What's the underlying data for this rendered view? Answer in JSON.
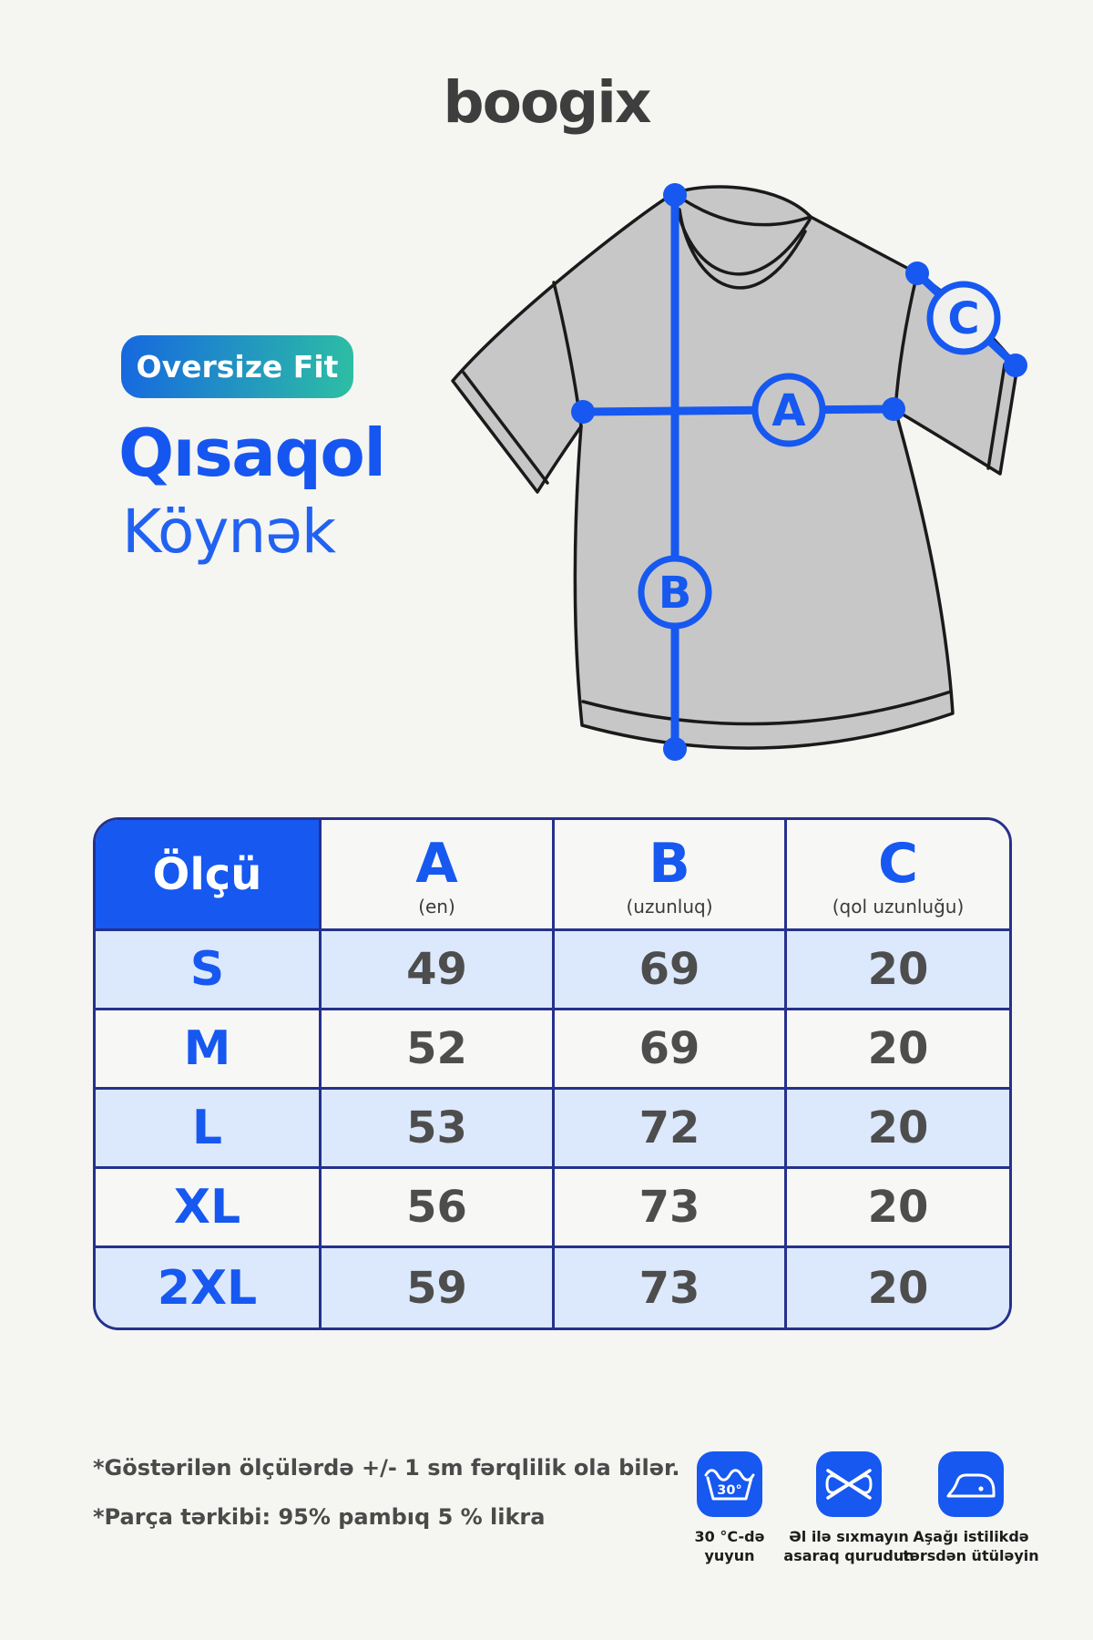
{
  "brand": {
    "logo_text": "boogix"
  },
  "product": {
    "fit_badge": "Oversize Fit",
    "title_line1": "Qısaqol",
    "title_line2": "Köynək"
  },
  "diagram": {
    "a_label": "A",
    "b_label": "B",
    "c_label": "C"
  },
  "size_table": {
    "header": {
      "size_col": "Ölçü",
      "columns": [
        {
          "letter": "A",
          "subtitle": "(en)"
        },
        {
          "letter": "B",
          "subtitle": "(uzunluq)"
        },
        {
          "letter": "C",
          "subtitle": "(qol uzunluğu)"
        }
      ]
    },
    "rows": [
      {
        "size": "S",
        "a": "49",
        "b": "69",
        "c": "20"
      },
      {
        "size": "M",
        "a": "52",
        "b": "69",
        "c": "20"
      },
      {
        "size": "L",
        "a": "53",
        "b": "72",
        "c": "20"
      },
      {
        "size": "XL",
        "a": "56",
        "b": "73",
        "c": "20"
      },
      {
        "size": "2XL",
        "a": "59",
        "b": "73",
        "c": "20"
      }
    ]
  },
  "notes": {
    "line1": "*Göstərilən ölçülərdə +/- 1 sm fərqlilik ola bilər.",
    "line2": "*Parça tərkibi: 95% pambıq 5 % likra"
  },
  "care": [
    {
      "icon": "wash-30-icon",
      "temp": "30°",
      "label_line1": "30 °C-də",
      "label_line2": "yuyun"
    },
    {
      "icon": "do-not-wring-icon",
      "label_line1": "Əl ilə sıxmayın",
      "label_line2": "asaraq qurudun"
    },
    {
      "icon": "iron-low-icon",
      "label_line1": "Aşağı istilikdə",
      "label_line2": "tərsdən ütüləyin"
    }
  ],
  "colors": {
    "background": "#f5f5f2",
    "accent_blue": "#1658f0",
    "navy_border": "#25318c",
    "badge_gradient_start": "#1668e0",
    "badge_gradient_end": "#2dbfa3",
    "row_alt_bg": "#dce8fb",
    "shirt_fill": "#c7c7c7",
    "logo_color": "#3e3e3e"
  }
}
